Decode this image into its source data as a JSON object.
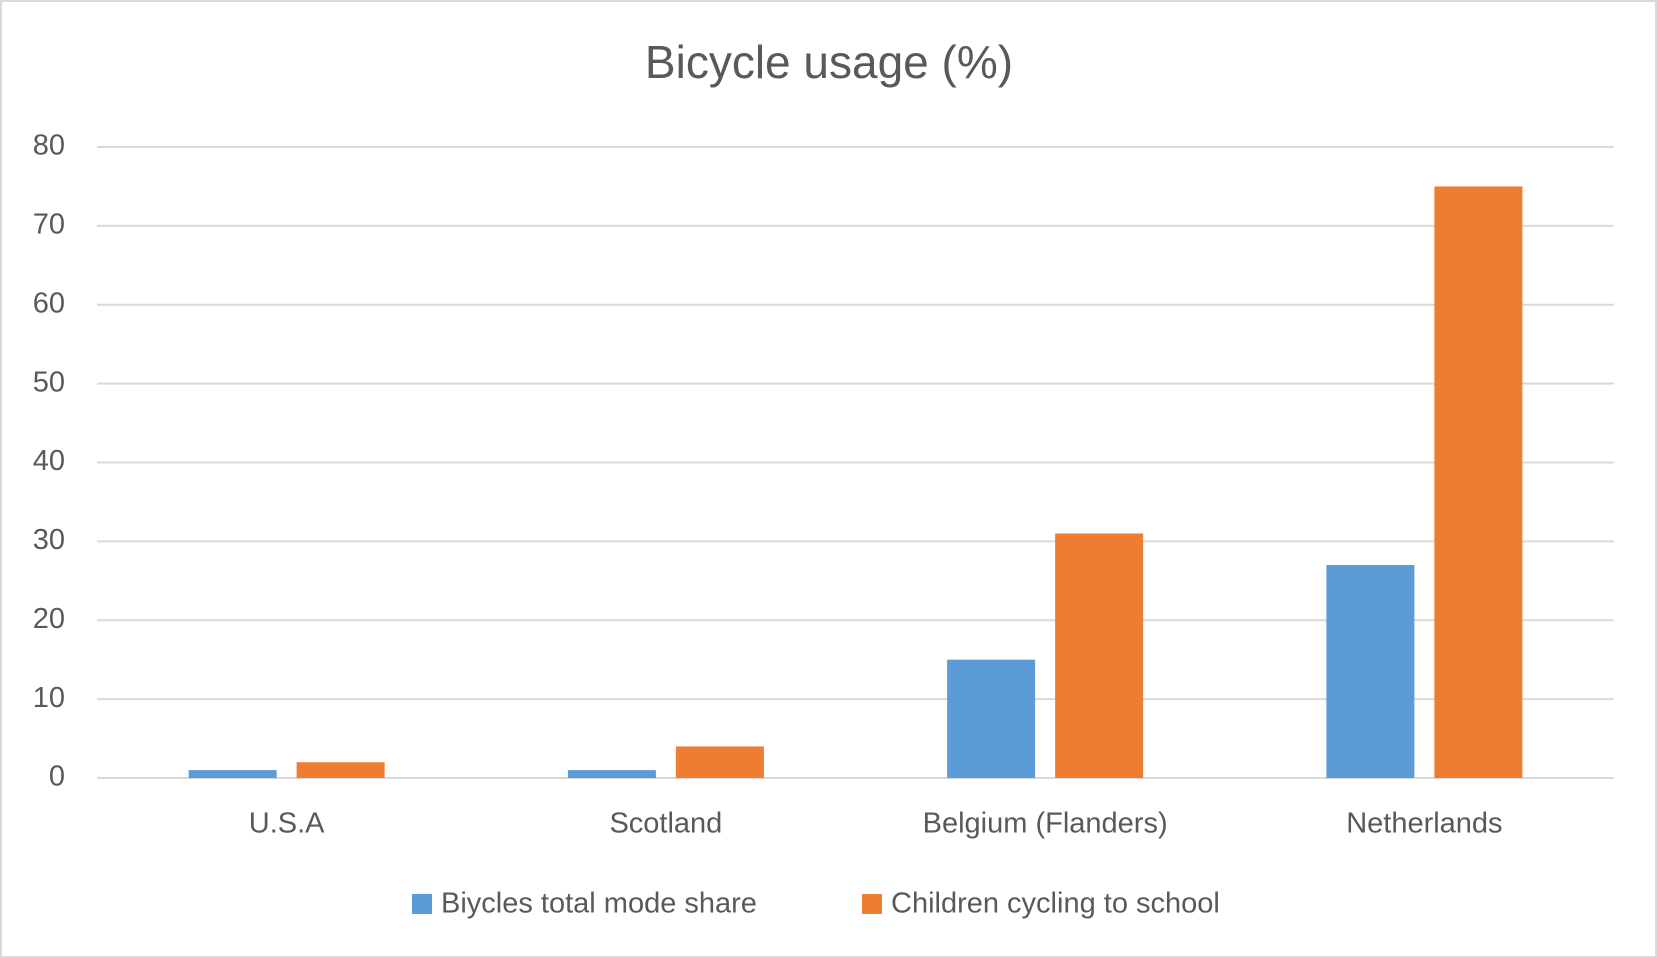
{
  "chart_data": {
    "type": "bar",
    "title": "Bicycle usage (%)",
    "categories": [
      "U.S.A",
      "Scotland",
      "Belgium (Flanders)",
      "Netherlands"
    ],
    "series": [
      {
        "name": "Biycles total mode share",
        "color": "#5b9bd5",
        "values": [
          1,
          1,
          15,
          27
        ]
      },
      {
        "name": "Children cycling to school",
        "color": "#ed7d31",
        "values": [
          2,
          4,
          31,
          75
        ]
      }
    ],
    "ylim": [
      0,
      80
    ],
    "yticks": [
      0,
      10,
      20,
      30,
      40,
      50,
      60,
      70,
      80
    ],
    "grid": true,
    "legend": "bottom"
  }
}
